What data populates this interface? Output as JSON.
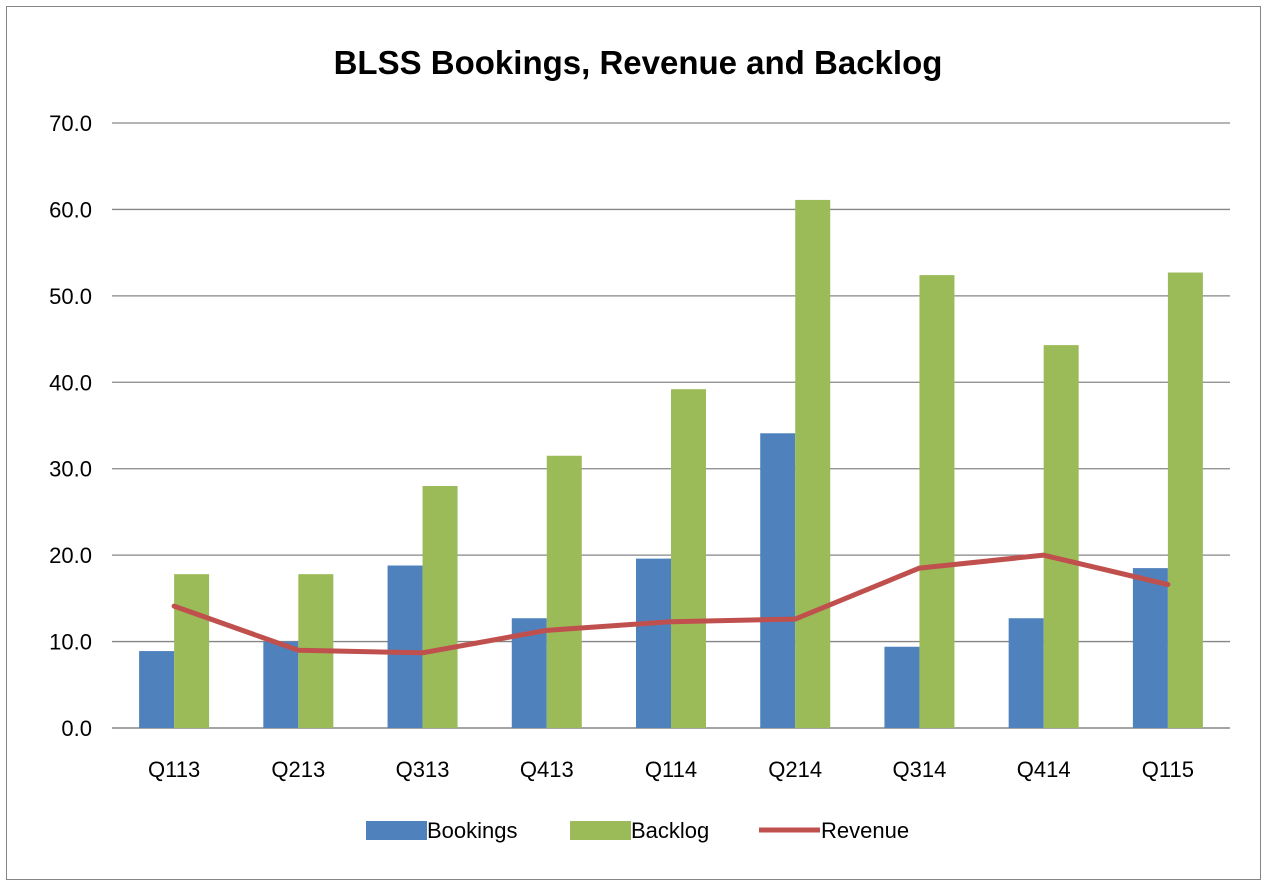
{
  "chart_data": {
    "type": "bar",
    "title": "BLSS Bookings, Revenue and Backlog",
    "xlabel": "",
    "ylabel": "",
    "categories": [
      "Q113",
      "Q213",
      "Q313",
      "Q413",
      "Q114",
      "Q214",
      "Q314",
      "Q414",
      "Q115"
    ],
    "ylim": [
      0,
      70
    ],
    "yticks": [
      "0.0",
      "10.0",
      "20.0",
      "30.0",
      "40.0",
      "50.0",
      "60.0",
      "70.0"
    ],
    "grid": true,
    "legend_position": "bottom",
    "series": [
      {
        "name": "Bookings",
        "kind": "bar",
        "color": "#4F81BD",
        "values": [
          8.9,
          10.0,
          18.8,
          12.7,
          19.6,
          34.1,
          9.4,
          12.7,
          18.5
        ]
      },
      {
        "name": "Backlog",
        "kind": "bar",
        "color": "#9BBB59",
        "values": [
          17.8,
          17.8,
          28.0,
          31.5,
          39.2,
          61.1,
          52.4,
          44.3,
          52.7
        ]
      },
      {
        "name": "Revenue",
        "kind": "line",
        "color": "#C0504D",
        "values": [
          14.1,
          9.0,
          8.7,
          11.3,
          12.3,
          12.6,
          18.5,
          20.0,
          16.6
        ]
      }
    ]
  }
}
